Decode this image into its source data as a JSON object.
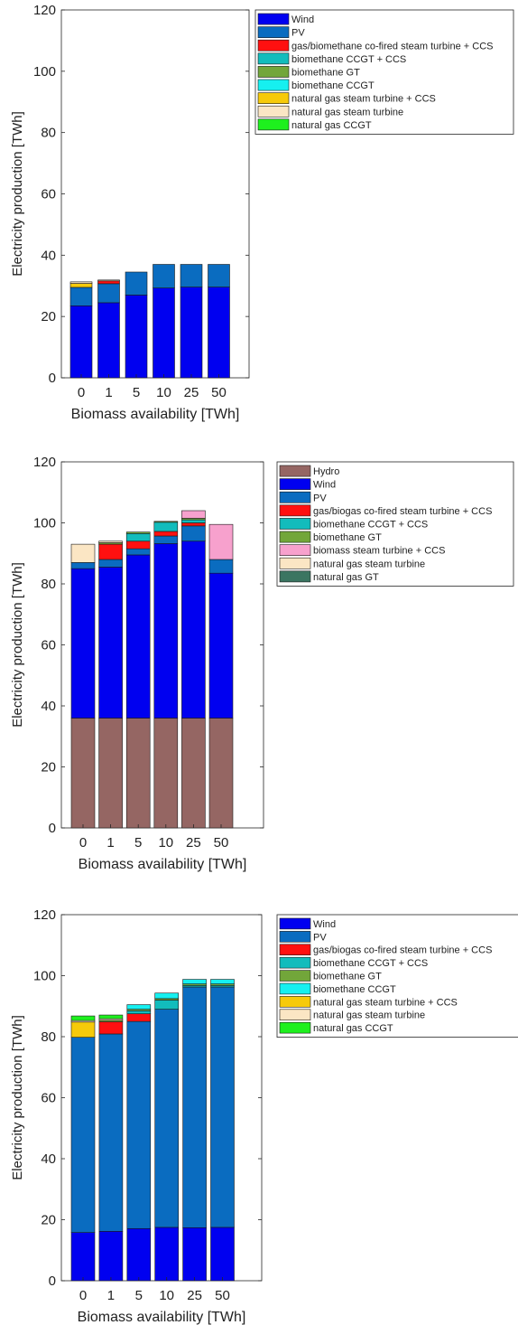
{
  "colors": {
    "Wind": "#0000f0",
    "PV": "#0a6cc0",
    "Hydro": "#956663",
    "gas_biomethane_cofired_ccs": "#ff1010",
    "gas_biogas_cofired_ccs": "#ff1010",
    "biomethane_ccgt_ccs": "#12bcbc",
    "biomethane_gt": "#72a63a",
    "biomethane_ccgt": "#16f0f0",
    "biomass_steam_ccs": "#f7a1cd",
    "ng_steam_ccs": "#f6ca0a",
    "ng_steam": "#fbe6c4",
    "ng_ccgt": "#1ef01e",
    "ng_gt": "#3b7561"
  },
  "chart_data": [
    {
      "type": "bar",
      "stacked": true,
      "title": "",
      "xlabel": "Biomass availability [TWh]",
      "ylabel": "Electricity production [TWh]",
      "ylim": [
        0,
        120
      ],
      "yticks": [
        "0",
        "20",
        "40",
        "60",
        "80",
        "100",
        "120"
      ],
      "categories": [
        "0",
        "1",
        "5",
        "10",
        "25",
        "50"
      ],
      "legend_position": "outside top-right",
      "series": [
        {
          "name": "Wind",
          "color_key": "Wind",
          "values": [
            23.5,
            24.5,
            27,
            29.3,
            29.6,
            29.6
          ]
        },
        {
          "name": "PV",
          "color_key": "PV",
          "values": [
            6,
            6.2,
            7.5,
            7.7,
            7.4,
            7.4
          ]
        },
        {
          "name": "gas/biomethane co-fired steam turbine + CCS",
          "color_key": "gas_biomethane_cofired_ccs",
          "values": [
            0,
            0.9,
            0,
            0,
            0,
            0
          ]
        },
        {
          "name": "biomethane CCGT + CCS",
          "color_key": "biomethane_ccgt_ccs",
          "values": [
            0,
            0,
            0,
            0,
            0,
            0
          ]
        },
        {
          "name": "biomethane GT",
          "color_key": "biomethane_gt",
          "values": [
            0,
            0,
            0,
            0,
            0,
            0
          ]
        },
        {
          "name": "biomethane CCGT",
          "color_key": "biomethane_ccgt",
          "values": [
            0,
            0,
            0,
            0,
            0,
            0
          ]
        },
        {
          "name": "natural gas steam turbine + CCS",
          "color_key": "ng_steam_ccs",
          "values": [
            1.3,
            0,
            0,
            0,
            0,
            0
          ]
        },
        {
          "name": "natural gas steam turbine",
          "color_key": "ng_steam",
          "values": [
            0.5,
            0.3,
            0,
            0,
            0,
            0
          ]
        },
        {
          "name": "natural gas CCGT",
          "color_key": "ng_ccgt",
          "values": [
            0,
            0,
            0,
            0,
            0,
            0
          ]
        }
      ]
    },
    {
      "type": "bar",
      "stacked": true,
      "title": "",
      "xlabel": "Biomass availability [TWh]",
      "ylabel": "Electricity production [TWh]",
      "ylim": [
        0,
        120
      ],
      "yticks": [
        "0",
        "20",
        "40",
        "60",
        "80",
        "100",
        "120"
      ],
      "categories": [
        "0",
        "1",
        "5",
        "10",
        "25",
        "50"
      ],
      "legend_position": "outside top-right",
      "series": [
        {
          "name": "Hydro",
          "color_key": "Hydro",
          "values": [
            36,
            36,
            36,
            36,
            36,
            36
          ]
        },
        {
          "name": "Wind",
          "color_key": "Wind",
          "values": [
            49,
            49.5,
            53.5,
            57.2,
            58,
            47.5
          ]
        },
        {
          "name": "PV",
          "color_key": "PV",
          "values": [
            2,
            2.5,
            2,
            2.5,
            5,
            4.5
          ]
        },
        {
          "name": "gas/biogas co-fired steam turbine + CCS",
          "color_key": "gas_biogas_cofired_ccs",
          "values": [
            0,
            5,
            2.5,
            1.5,
            1,
            0
          ]
        },
        {
          "name": "biomethane CCGT + CCS",
          "color_key": "biomethane_ccgt_ccs",
          "values": [
            0,
            0,
            2.5,
            3,
            1,
            0
          ]
        },
        {
          "name": "biomethane GT",
          "color_key": "biomethane_gt",
          "values": [
            0,
            0.5,
            0.5,
            0.3,
            0.5,
            0
          ]
        },
        {
          "name": "biomass steam turbine + CCS",
          "color_key": "biomass_steam_ccs",
          "values": [
            0,
            0,
            0,
            0,
            2.5,
            11.5
          ]
        },
        {
          "name": "natural gas steam turbine",
          "color_key": "ng_steam",
          "values": [
            6,
            0.5,
            0,
            0,
            0,
            0
          ]
        },
        {
          "name": "natural gas GT",
          "color_key": "ng_gt",
          "values": [
            0,
            0,
            0,
            0,
            0,
            0
          ]
        }
      ]
    },
    {
      "type": "bar",
      "stacked": true,
      "title": "",
      "xlabel": "Biomass availability [TWh]",
      "ylabel": "Electricity production [TWh]",
      "ylim": [
        0,
        120
      ],
      "yticks": [
        "0",
        "20",
        "40",
        "60",
        "80",
        "100",
        "120"
      ],
      "categories": [
        "0",
        "1",
        "5",
        "10",
        "25",
        "50"
      ],
      "legend_position": "outside top-right",
      "series": [
        {
          "name": "Wind",
          "color_key": "Wind",
          "values": [
            15.8,
            16.2,
            17.1,
            17.5,
            17.4,
            17.5
          ]
        },
        {
          "name": "PV",
          "color_key": "PV",
          "values": [
            64,
            64.7,
            67.9,
            71.5,
            78.9,
            78.8
          ]
        },
        {
          "name": "gas/biogas co-fired steam turbine + CCS",
          "color_key": "gas_biogas_cofired_ccs",
          "values": [
            0,
            4,
            2.5,
            0,
            0,
            0
          ]
        },
        {
          "name": "biomethane CCGT + CCS",
          "color_key": "biomethane_ccgt_ccs",
          "values": [
            0,
            0,
            1,
            3,
            0.5,
            0.5
          ]
        },
        {
          "name": "biomethane GT",
          "color_key": "biomethane_gt",
          "values": [
            0,
            0.5,
            0.5,
            0.5,
            0.5,
            0.5
          ]
        },
        {
          "name": "biomethane CCGT",
          "color_key": "biomethane_ccgt",
          "values": [
            0,
            0,
            1.5,
            1.8,
            1.5,
            1.5
          ]
        },
        {
          "name": "natural gas steam turbine + CCS",
          "color_key": "ng_steam_ccs",
          "values": [
            5,
            0,
            0,
            0,
            0,
            0
          ]
        },
        {
          "name": "natural gas steam turbine",
          "color_key": "ng_steam",
          "values": [
            0.5,
            0.5,
            0,
            0,
            0,
            0
          ]
        },
        {
          "name": "natural gas CCGT",
          "color_key": "ng_ccgt",
          "values": [
            1.5,
            1.2,
            0,
            0,
            0,
            0
          ]
        }
      ]
    }
  ]
}
